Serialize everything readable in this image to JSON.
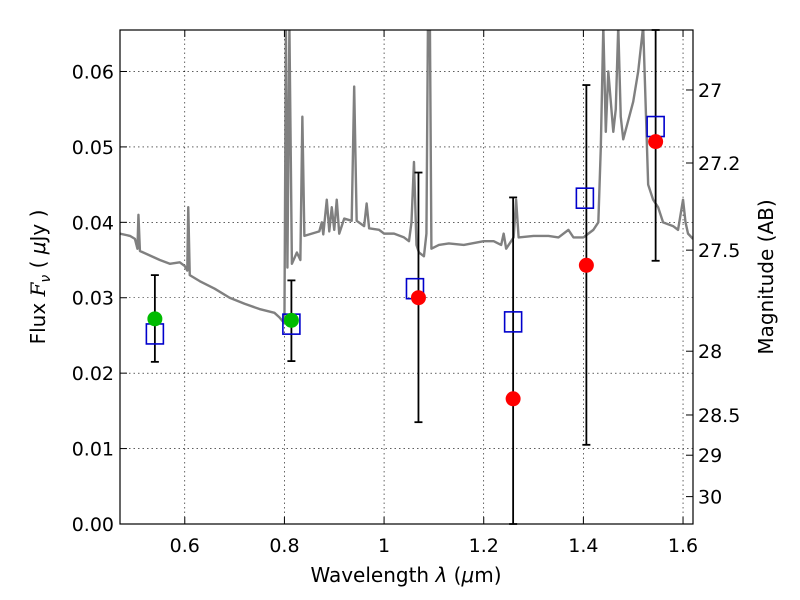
{
  "chart_data": {
    "type": "scatter",
    "xlabel_parts": {
      "pre": "Wavelength ",
      "sym": "λ",
      "mid": " (",
      "mu": "μ",
      "post": "m)"
    },
    "ylabel_parts": {
      "pre": "Flux ",
      "sym": "F",
      "sub": "ν",
      "mid": " ( ",
      "mu": "μ",
      "post": "Jy )"
    },
    "y2label": "Magnitude (AB)",
    "xlim": [
      0.47,
      1.62
    ],
    "ylim": [
      0.0,
      0.0655
    ],
    "grid": true,
    "x_ticks": [
      0.6,
      0.8,
      1.0,
      1.2,
      1.4,
      1.6
    ],
    "x_tick_labels": [
      "0.6",
      "0.8",
      "1",
      "1.2",
      "1.4",
      "1.6"
    ],
    "y_ticks": [
      0.0,
      0.01,
      0.02,
      0.03,
      0.04,
      0.05,
      0.06
    ],
    "y_tick_labels": [
      "0.00",
      "0.01",
      "0.02",
      "0.03",
      "0.04",
      "0.05",
      "0.06"
    ],
    "y2_ticks": [
      27,
      27.2,
      27.5,
      28,
      28.5,
      29,
      30
    ],
    "y2_tick_labels": [
      "27",
      "27.2",
      "27.5",
      "28",
      "28.5",
      "29",
      "30"
    ],
    "colors": {
      "spectrum": "#808080",
      "model_box": "#0000cc",
      "observed_green": "#00bb00",
      "observed_red": "#ff0000",
      "errorbar": "#000000"
    },
    "series": [
      {
        "kind": "line",
        "points": [
          [
            0.47,
            0.0385
          ],
          [
            0.49,
            0.0382
          ],
          [
            0.5,
            0.0378
          ],
          [
            0.505,
            0.0365
          ],
          [
            0.507,
            0.041
          ],
          [
            0.51,
            0.0362
          ],
          [
            0.53,
            0.0356
          ],
          [
            0.55,
            0.035
          ],
          [
            0.57,
            0.0345
          ],
          [
            0.59,
            0.0347
          ],
          [
            0.6,
            0.0342
          ],
          [
            0.605,
            0.0336
          ],
          [
            0.607,
            0.042
          ],
          [
            0.61,
            0.033
          ],
          [
            0.63,
            0.0322
          ],
          [
            0.66,
            0.0312
          ],
          [
            0.69,
            0.03
          ],
          [
            0.72,
            0.0292
          ],
          [
            0.75,
            0.0285
          ],
          [
            0.78,
            0.028
          ],
          [
            0.79,
            0.0274
          ],
          [
            0.8,
            0.0266
          ],
          [
            0.803,
            0.066
          ],
          [
            0.806,
            0.034
          ],
          [
            0.81,
            0.066
          ],
          [
            0.815,
            0.0345
          ],
          [
            0.825,
            0.036
          ],
          [
            0.832,
            0.035
          ],
          [
            0.836,
            0.054
          ],
          [
            0.84,
            0.0382
          ],
          [
            0.86,
            0.0386
          ],
          [
            0.87,
            0.0388
          ],
          [
            0.875,
            0.04
          ],
          [
            0.878,
            0.0384
          ],
          [
            0.885,
            0.043
          ],
          [
            0.89,
            0.0388
          ],
          [
            0.895,
            0.042
          ],
          [
            0.9,
            0.039
          ],
          [
            0.905,
            0.043
          ],
          [
            0.91,
            0.0385
          ],
          [
            0.92,
            0.0405
          ],
          [
            0.935,
            0.0402
          ],
          [
            0.94,
            0.058
          ],
          [
            0.945,
            0.0402
          ],
          [
            0.96,
            0.0395
          ],
          [
            0.965,
            0.0425
          ],
          [
            0.97,
            0.0392
          ],
          [
            0.99,
            0.039
          ],
          [
            1.0,
            0.0385
          ],
          [
            1.02,
            0.0385
          ],
          [
            1.04,
            0.038
          ],
          [
            1.05,
            0.0375
          ],
          [
            1.055,
            0.04
          ],
          [
            1.06,
            0.048
          ],
          [
            1.065,
            0.037
          ],
          [
            1.07,
            0.036
          ],
          [
            1.08,
            0.0355
          ],
          [
            1.085,
            0.0385
          ],
          [
            1.088,
            0.066
          ],
          [
            1.092,
            0.066
          ],
          [
            1.095,
            0.0365
          ],
          [
            1.11,
            0.037
          ],
          [
            1.13,
            0.0372
          ],
          [
            1.16,
            0.037
          ],
          [
            1.2,
            0.0375
          ],
          [
            1.22,
            0.0375
          ],
          [
            1.235,
            0.037
          ],
          [
            1.24,
            0.0385
          ],
          [
            1.245,
            0.0365
          ],
          [
            1.25,
            0.037
          ],
          [
            1.26,
            0.038
          ],
          [
            1.265,
            0.043
          ],
          [
            1.27,
            0.038
          ],
          [
            1.3,
            0.0382
          ],
          [
            1.33,
            0.0382
          ],
          [
            1.35,
            0.038
          ],
          [
            1.37,
            0.039
          ],
          [
            1.38,
            0.038
          ],
          [
            1.4,
            0.038
          ],
          [
            1.41,
            0.0385
          ],
          [
            1.42,
            0.039
          ],
          [
            1.43,
            0.04
          ],
          [
            1.435,
            0.05
          ],
          [
            1.44,
            0.066
          ],
          [
            1.445,
            0.052
          ],
          [
            1.45,
            0.06
          ],
          [
            1.46,
            0.052
          ],
          [
            1.465,
            0.055
          ],
          [
            1.47,
            0.066
          ],
          [
            1.475,
            0.054
          ],
          [
            1.48,
            0.051
          ],
          [
            1.5,
            0.056
          ],
          [
            1.51,
            0.06
          ],
          [
            1.52,
            0.066
          ],
          [
            1.53,
            0.045
          ],
          [
            1.54,
            0.043
          ],
          [
            1.55,
            0.042
          ],
          [
            1.56,
            0.04
          ],
          [
            1.58,
            0.0395
          ],
          [
            1.59,
            0.039
          ],
          [
            1.6,
            0.043
          ],
          [
            1.605,
            0.04
          ],
          [
            1.61,
            0.0385
          ],
          [
            1.62,
            0.0378
          ]
        ]
      },
      {
        "kind": "model-boxes",
        "points": [
          [
            0.54,
            0.0252
          ],
          [
            0.814,
            0.0265
          ],
          [
            1.062,
            0.0312
          ],
          [
            1.259,
            0.0268
          ],
          [
            1.403,
            0.0432
          ],
          [
            1.545,
            0.0527
          ]
        ]
      },
      {
        "kind": "observed-green",
        "points": [
          [
            0.54,
            0.0272
          ],
          [
            0.814,
            0.027
          ]
        ]
      },
      {
        "kind": "observed-red",
        "points": [
          [
            1.069,
            0.03
          ],
          [
            1.259,
            0.0166
          ],
          [
            1.406,
            0.0343
          ],
          [
            1.545,
            0.0507
          ]
        ]
      },
      {
        "kind": "errorbars",
        "points": [
          {
            "x": 0.54,
            "low": 0.0215,
            "high": 0.033
          },
          {
            "x": 0.814,
            "low": 0.0216,
            "high": 0.0323
          },
          {
            "x": 1.069,
            "low": 0.0135,
            "high": 0.0466
          },
          {
            "x": 1.259,
            "low": 0.0,
            "high": 0.0433
          },
          {
            "x": 1.406,
            "low": 0.0105,
            "high": 0.0582
          },
          {
            "x": 1.545,
            "low": 0.0349,
            "high": 0.0655
          }
        ]
      }
    ]
  }
}
